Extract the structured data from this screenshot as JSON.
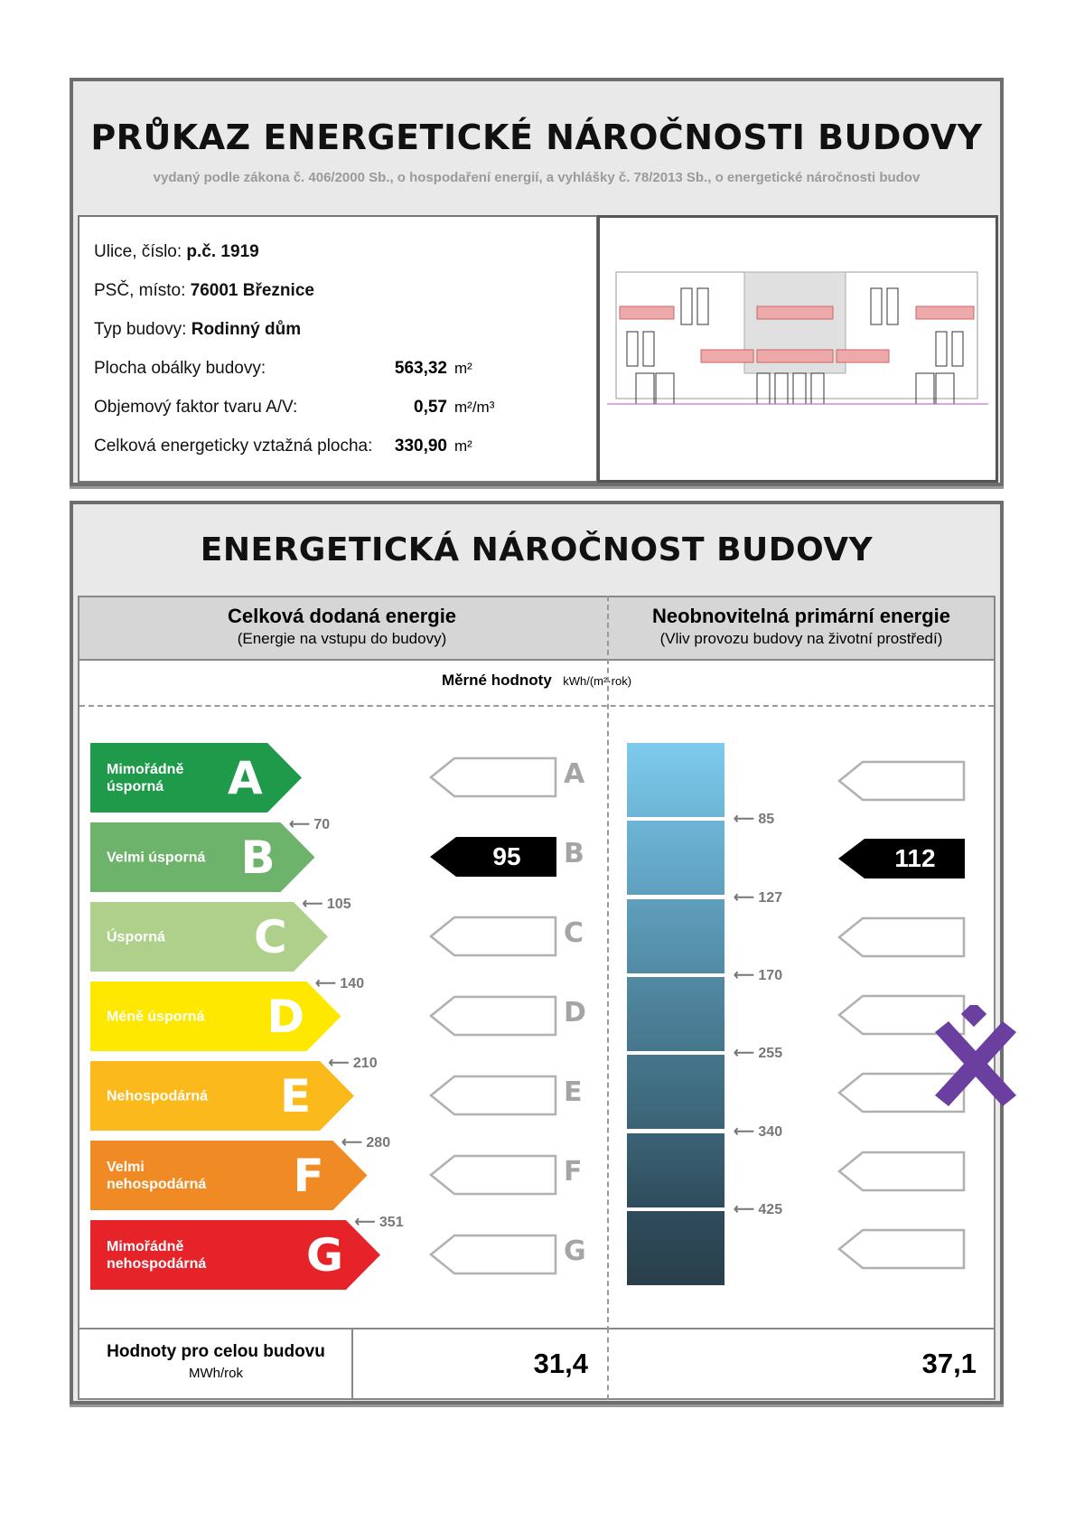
{
  "header": {
    "title": "PRŮKAZ ENERGETICKÉ NÁROČNOSTI BUDOVY",
    "subtitle": "vydaný podle zákona č. 406/2000 Sb., o hospodaření energií, a vyhlášky č. 78/2013 Sb., o energetické náročnosti budov"
  },
  "info": {
    "street_label": "Ulice, číslo:",
    "street": "p.č. 1919",
    "city_label": "PSČ, místo:",
    "city": "76001 Březnice",
    "type_label": "Typ budovy:",
    "type": "Rodinný dům",
    "envelope_label": "Plocha obálky budovy:",
    "envelope": "563,32",
    "envelope_unit": "m²",
    "factor_label": "Objemový faktor tvaru A/V:",
    "factor": "0,57",
    "factor_unit": "m²/m³",
    "area_label": "Celková energeticky vztažná plocha:",
    "area": "330,90",
    "area_unit": "m²"
  },
  "section": {
    "title": "ENERGETICKÁ NÁROČNOST BUDOVY",
    "left_head": "Celková dodaná energie",
    "left_sub": "(Energie na vstupu do budovy)",
    "right_head": "Neobnovitelná primární energie",
    "right_sub": "(Vliv provozu budovy na životní prostředí)",
    "specific_label": "Měrné hodnoty",
    "specific_unit": "kWh/(m²·rok)"
  },
  "classes": [
    {
      "letter": "A",
      "label": "Mimořádně úsporná",
      "color": "#1e9a4a",
      "text_color": "#ffffff"
    },
    {
      "letter": "B",
      "label": "Velmi úsporná",
      "color": "#6db36b",
      "text_color": "#ffffff"
    },
    {
      "letter": "C",
      "label": "Úsporná",
      "color": "#afd08a",
      "text_color": "#ffffff"
    },
    {
      "letter": "D",
      "label": "Méně úsporná",
      "color": "#ffe800",
      "text_color": "#ffffff"
    },
    {
      "letter": "E",
      "label": "Nehospodárná",
      "color": "#fbb91c",
      "text_color": "#ffffff"
    },
    {
      "letter": "F",
      "label": "Velmi nehospodárná",
      "color": "#f08a24",
      "text_color": "#ffffff"
    },
    {
      "letter": "G",
      "label": "Mimořádně nehospodárná",
      "color": "#e52329",
      "text_color": "#ffffff"
    }
  ],
  "left_thresholds": [
    "70",
    "105",
    "140",
    "210",
    "280",
    "351"
  ],
  "right_thresholds": [
    "85",
    "127",
    "170",
    "255",
    "340",
    "425"
  ],
  "blue_colors": [
    "#7ecbee",
    "#6db5d6",
    "#5f9fbd",
    "#528aa4",
    "#46768c",
    "#3b6375",
    "#2f4c5c"
  ],
  "left_value": {
    "value": "95",
    "class": "B"
  },
  "right_value": {
    "value": "112",
    "class": "B"
  },
  "footer": {
    "label": "Hodnoty pro celou budovu",
    "unit": "MWh/rok",
    "left": "31,4",
    "right": "37,1"
  },
  "colors": {
    "frame": "#6e6e6e",
    "header_bg": "#e9e9e9",
    "indicator": "#000000",
    "logo": "#6a3fa0"
  }
}
